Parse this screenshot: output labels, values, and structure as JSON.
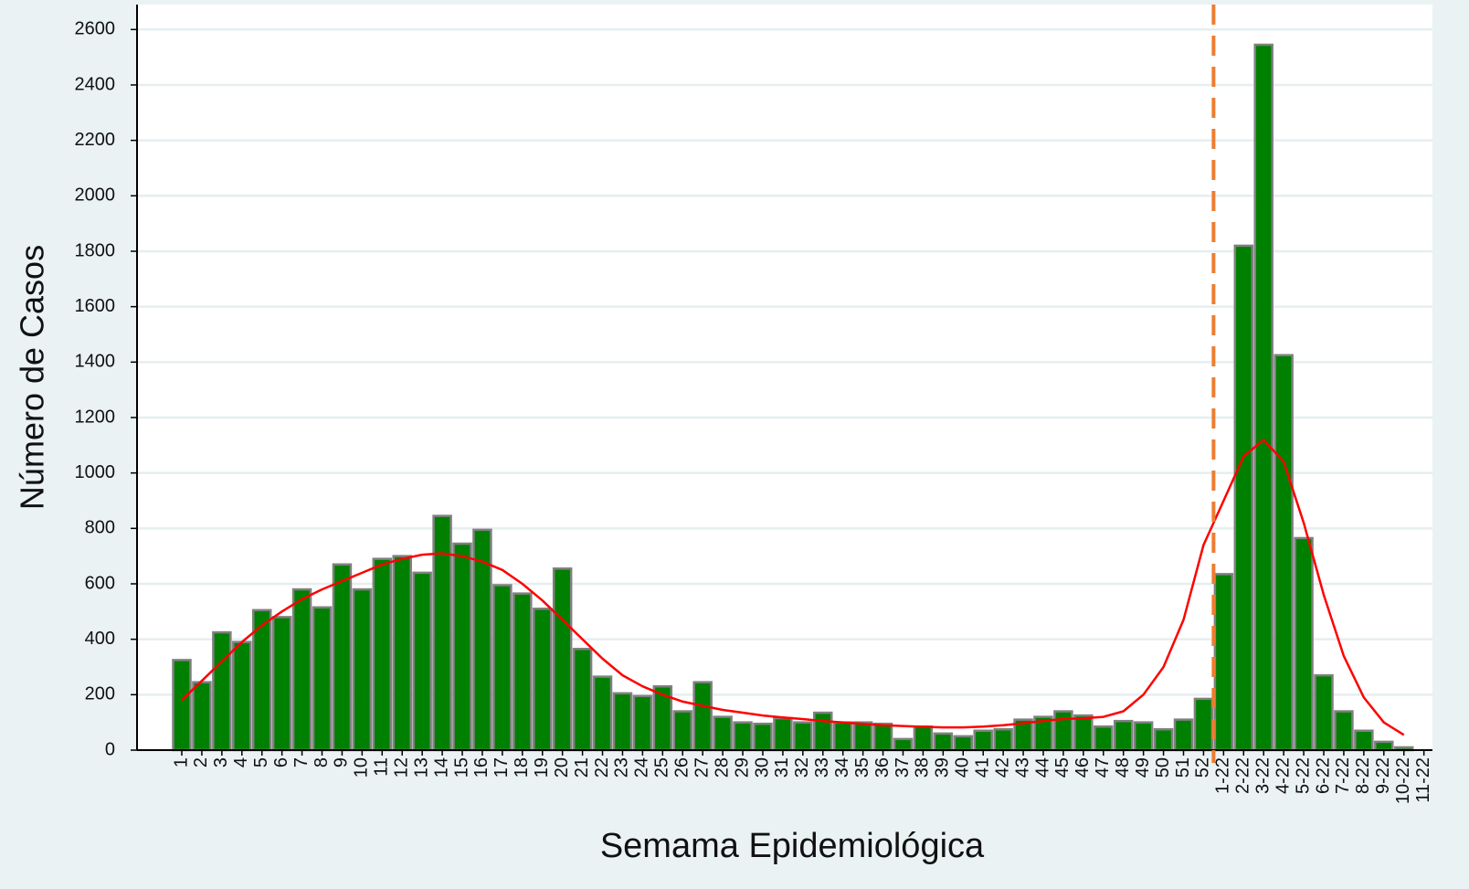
{
  "chart_data": {
    "type": "bar",
    "x_label": "Semama Epidemiológica",
    "y_label": "Número de Casos",
    "categories": [
      "1",
      "2",
      "3",
      "4",
      "5",
      "6",
      "7",
      "8",
      "9",
      "10",
      "11",
      "12",
      "13",
      "14",
      "15",
      "16",
      "17",
      "18",
      "19",
      "20",
      "21",
      "22",
      "23",
      "24",
      "25",
      "26",
      "27",
      "28",
      "29",
      "30",
      "31",
      "32",
      "33",
      "34",
      "35",
      "36",
      "37",
      "38",
      "39",
      "40",
      "41",
      "42",
      "43",
      "44",
      "45",
      "46",
      "47",
      "48",
      "49",
      "50",
      "51",
      "52",
      "1-22",
      "2-22",
      "3-22",
      "4-22",
      "5-22",
      "6-22",
      "7-22",
      "8-22",
      "9-22",
      "10-22",
      "11-22"
    ],
    "series": [
      {
        "type": "bar",
        "color": "#008000",
        "edge_color": "#808080",
        "values": [
          325,
          245,
          425,
          390,
          505,
          480,
          580,
          515,
          670,
          580,
          690,
          700,
          640,
          845,
          745,
          795,
          595,
          565,
          510,
          655,
          365,
          265,
          205,
          195,
          230,
          140,
          245,
          120,
          100,
          95,
          115,
          100,
          135,
          100,
          100,
          95,
          40,
          85,
          60,
          50,
          70,
          75,
          110,
          120,
          140,
          125,
          85,
          105,
          100,
          75,
          110,
          185,
          635,
          1820,
          2545,
          1425,
          765,
          270,
          140,
          70,
          30,
          10,
          0
        ]
      },
      {
        "type": "line",
        "color": "#ff0000",
        "values": [
          180,
          250,
          320,
          390,
          450,
          500,
          545,
          580,
          610,
          640,
          670,
          690,
          705,
          710,
          700,
          680,
          650,
          600,
          540,
          470,
          400,
          330,
          270,
          230,
          200,
          175,
          160,
          145,
          135,
          125,
          118,
          112,
          105,
          100,
          95,
          90,
          87,
          84,
          82,
          82,
          85,
          90,
          97,
          105,
          112,
          115,
          120,
          140,
          200,
          300,
          470,
          740,
          900,
          1060,
          1120,
          1040,
          820,
          560,
          340,
          190,
          100,
          55,
          null
        ]
      }
    ],
    "ylim": [
      0,
      2690
    ],
    "yticks": [
      0,
      200,
      400,
      600,
      800,
      1000,
      1200,
      1400,
      1600,
      1800,
      2000,
      2200,
      2400,
      2600
    ],
    "grid": true
  }
}
